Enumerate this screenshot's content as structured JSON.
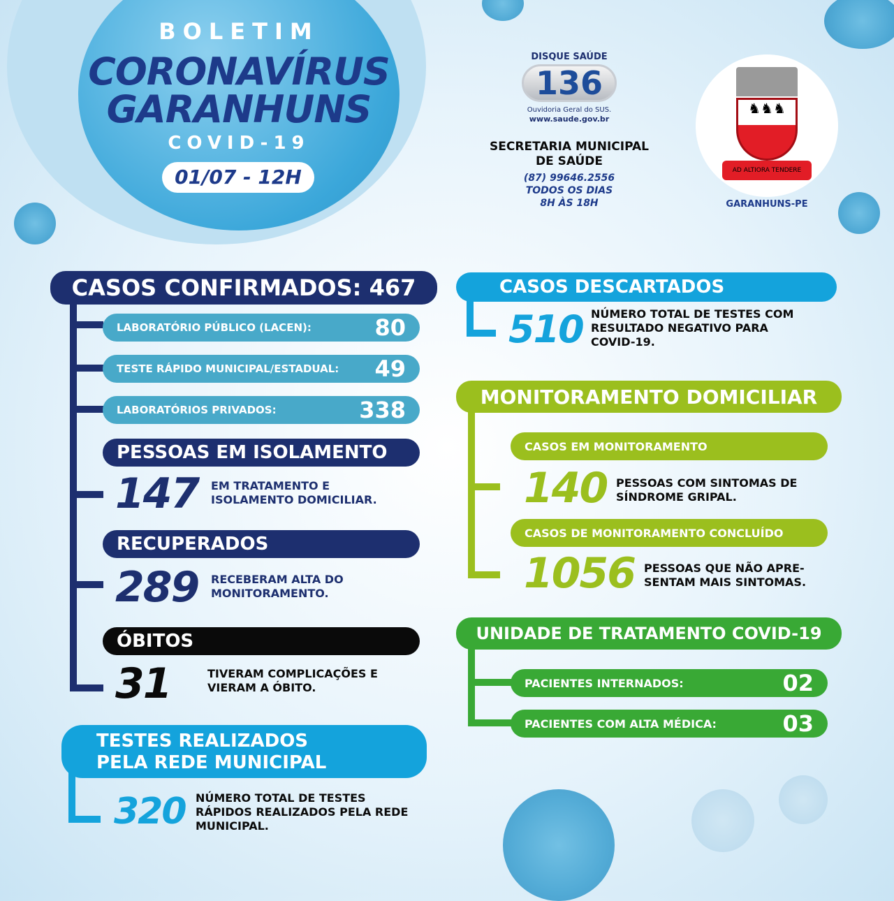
{
  "header": {
    "boletim": "BOLETIM",
    "title_line1": "CORONAVÍRUS",
    "title_line2": "GARANHUNS",
    "subtitle": "COVID-19",
    "date": "01/07 - 12H"
  },
  "contact": {
    "disque": "DISQUE SAÚDE",
    "number": "136",
    "ouvidoria": "Ouvidoria Geral do SUS.",
    "site": "www.saude.gov.br",
    "secretaria_line1": "SECRETARIA MUNICIPAL",
    "secretaria_line2": "DE SAÚDE",
    "phone": "(87) 99646.2556",
    "days": "TODOS OS DIAS",
    "hours": "8H ÀS 18H"
  },
  "logo": {
    "motto": "AD ALTIORA TENDERE",
    "city": "GARANHUNS-PE"
  },
  "confirmados": {
    "title": "CASOS CONFIRMADOS: 467",
    "items": [
      {
        "label": "LABORATÓRIO PÚBLICO (LACEN):",
        "value": "80"
      },
      {
        "label": "TESTE RÁPIDO MUNICIPAL/ESTADUAL:",
        "value": "49"
      },
      {
        "label": "LABORATÓRIOS PRIVADOS:",
        "value": "338"
      }
    ]
  },
  "isolamento": {
    "title": "PESSOAS EM ISOLAMENTO",
    "value": "147",
    "desc1": "EM TRATAMENTO E",
    "desc2": "ISOLAMENTO DOMICILIAR."
  },
  "recuperados": {
    "title": "RECUPERADOS",
    "value": "289",
    "desc1": "RECEBERAM ALTA DO",
    "desc2": "MONITORAMENTO."
  },
  "obitos": {
    "title": "ÓBITOS",
    "value": "31",
    "desc1": "TIVERAM COMPLICAÇÕES E",
    "desc2": "VIERAM A ÓBITO."
  },
  "testes": {
    "title1": "TESTES REALIZADOS",
    "title2": "PELA REDE MUNICIPAL",
    "value": "320",
    "desc1": "NÚMERO TOTAL DE TESTES",
    "desc2": "RÁPIDOS REALIZADOS PELA REDE",
    "desc3": "MUNICIPAL."
  },
  "descartados": {
    "title": "CASOS DESCARTADOS",
    "value": "510",
    "desc1": "NÚMERO TOTAL DE TESTES COM",
    "desc2": "RESULTADO NEGATIVO PARA",
    "desc3": "COVID-19."
  },
  "monitoramento": {
    "title": "MONITORAMENTO DOMICILIAR",
    "sub1": "CASOS EM MONITORAMENTO",
    "value1": "140",
    "desc1a": "PESSOAS COM SINTOMAS DE",
    "desc1b": "SÍNDROME GRIPAL.",
    "sub2": "CASOS DE MONITORAMENTO CONCLUÍDO",
    "value2": "1056",
    "desc2a": "PESSOAS QUE NÃO APRE-",
    "desc2b": "SENTAM MAIS SINTOMAS."
  },
  "unidade": {
    "title": "UNIDADE DE TRATAMENTO COVID-19",
    "items": [
      {
        "label": "PACIENTES INTERNADOS:",
        "value": "02"
      },
      {
        "label": "PACIENTES COM ALTA MÉDICA:",
        "value": "03"
      }
    ]
  },
  "colors": {
    "navy": "#1d2f6f",
    "light_blue": "#48a9c9",
    "cyan": "#14a3dc",
    "lime": "#9bbf1e",
    "green": "#39a935",
    "black": "#0a0a0a"
  }
}
